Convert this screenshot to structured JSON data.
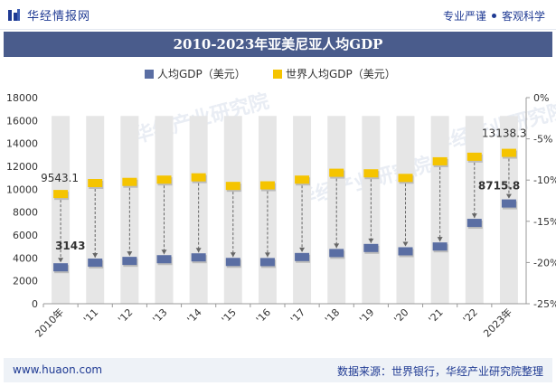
{
  "header": {
    "brand": "华经情报网",
    "tagline_left": "专业严谨",
    "tagline_right": "客观科学"
  },
  "title": "2010-2023年亚美尼亚人均GDP",
  "footer": {
    "url": "www.huaon.com",
    "source": "数据来源：世界银行，华经产业研究院整理"
  },
  "watermark": "华经产业研究院",
  "colors": {
    "brand": "#1f3a93",
    "banner": "#4a5c8c",
    "series_armenia": "#5a6ea3",
    "series_world": "#f5c400",
    "column_bg": "#e6e6e6"
  },
  "chart_data": {
    "type": "line",
    "categories": [
      "2010年",
      "'11",
      "'12",
      "'13",
      "'14",
      "'15",
      "'16",
      "'17",
      "'18",
      "'19",
      "'20",
      "'21",
      "'22",
      "2023年"
    ],
    "series": [
      {
        "name": "人均GDP（美元）",
        "values": [
          3143,
          3550,
          3700,
          3850,
          4010,
          3610,
          3600,
          4040,
          4390,
          4830,
          4540,
          4960,
          7020,
          8715.8
        ]
      },
      {
        "name": "世界人均GDP（美元）",
        "values": [
          9543.1,
          10500,
          10600,
          10800,
          11000,
          10250,
          10300,
          10800,
          11400,
          11350,
          10950,
          12400,
          12800,
          13138.3
        ]
      }
    ],
    "data_labels": {
      "series_0": {
        "first": "3143",
        "last": "8715.8"
      },
      "series_1": {
        "first": "9543.1",
        "last": "13138.3"
      }
    },
    "y_left": {
      "min": 0,
      "max": 18000,
      "ticks": [
        0,
        2000,
        4000,
        6000,
        8000,
        10000,
        12000,
        14000,
        16000,
        18000
      ]
    },
    "y_right": {
      "min": -25,
      "max": 0,
      "ticks": [
        "0%",
        "-5%",
        "-10%",
        "-15%",
        "-20%",
        "-25%"
      ]
    },
    "legend_position": "top-center"
  }
}
